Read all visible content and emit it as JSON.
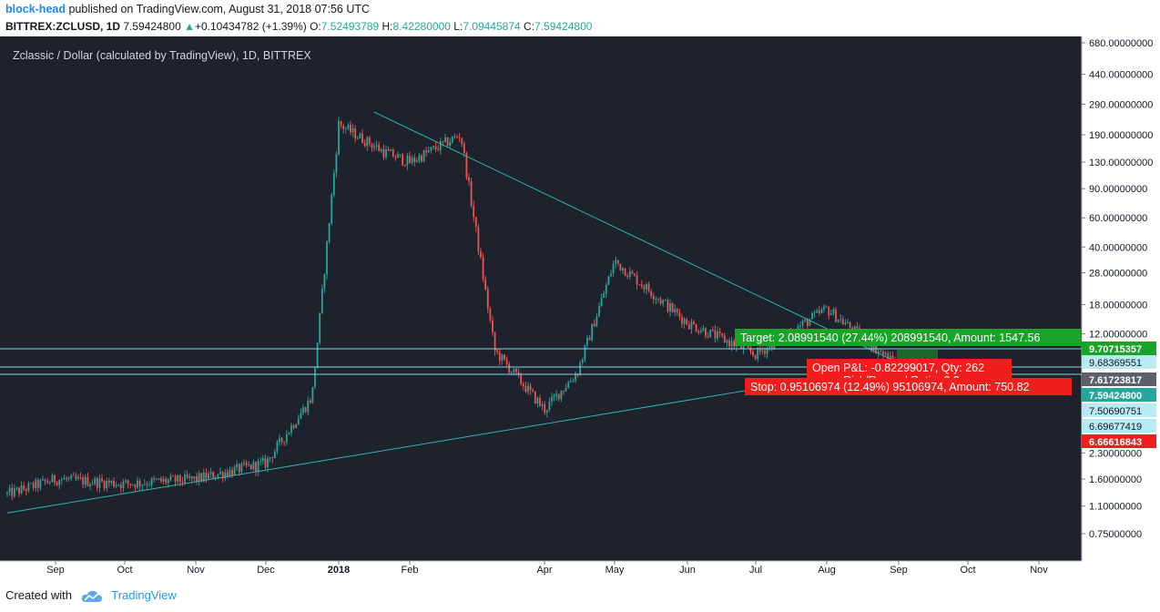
{
  "header": {
    "user": "block-head",
    "published": "published on TradingView.com, August 31, 2018 07:56 UTC",
    "symbol": "BITTREX:ZCLUSD, 1D",
    "last": "7.59424800",
    "change": "+0.10434782 (+1.39%)",
    "o_label": "O:",
    "open": "7.52493789",
    "h_label": "H:",
    "high": "8.42280000",
    "l_label": "L:",
    "low": "7.09445874",
    "c_label": "C:",
    "close": "7.59424800"
  },
  "chart": {
    "legend": "Zclassic / Dollar (calculated by TradingView), 1D, BITTREX",
    "target_label": "Target: 2.08991540 (27.44%) 208991540, Amount: 1547.56",
    "openpl_label": "Open P&L: -0.82299017, Qty: 262",
    "rr_label": "Risk/Reward Ratio: 2.2",
    "stop_label": "Stop: 0.95106974 (12.49%) 95106974, Amount: 750.82"
  },
  "footer": {
    "created": "Created with",
    "brand": "TradingView"
  },
  "colors": {
    "background": "#1e222d",
    "up": "#26a69a",
    "down": "#ef5350",
    "trendline": "#2bb8a8",
    "hline": "#7fd8e8",
    "target": "#1aa329",
    "stop": "#f21d1d"
  },
  "chart_data": {
    "type": "candlestick",
    "title": "Zclassic / Dollar (calculated by TradingView), 1D, BITTREX",
    "y_scale": "log",
    "y_ticks": [
      "680.00000000",
      "440.00000000",
      "290.00000000",
      "190.00000000",
      "130.00000000",
      "90.00000000",
      "60.00000000",
      "40.00000000",
      "28.00000000",
      "18.00000000",
      "12.00000000",
      "2.30000000",
      "1.60000000",
      "1.10000000",
      "0.75000000"
    ],
    "x_ticks": [
      "Sep",
      "Oct",
      "Nov",
      "Dec",
      "2018",
      "Feb",
      "Apr",
      "May",
      "Jun",
      "Jul",
      "Aug",
      "Sep",
      "Oct",
      "Nov"
    ],
    "price_labels": [
      {
        "text": "9.70715357",
        "style": "target"
      },
      {
        "text": "9.68369551",
        "style": "line"
      },
      {
        "text": "7.61723817",
        "style": "dark"
      },
      {
        "text": "7.59424800",
        "style": "last"
      },
      {
        "text": "7.50690751",
        "style": "line"
      },
      {
        "text": "6.69677419",
        "style": "line"
      },
      {
        "text": "6.66616843",
        "style": "stop"
      }
    ],
    "trendlines": [
      {
        "name": "resistance",
        "from": [
          "Jan 16 2018",
          260
        ],
        "to": [
          "Sep 2018",
          8.0
        ]
      },
      {
        "name": "support",
        "from": [
          "Aug 2017",
          1.0
        ],
        "to": [
          "Aug 20 2018",
          7.3
        ]
      }
    ],
    "series": [
      {
        "date": "Aug 2017",
        "close": 1.3
      },
      {
        "date": "Sep 2017",
        "close": 1.6
      },
      {
        "date": "Oct 2017",
        "close": 1.5
      },
      {
        "date": "Nov 2017",
        "close": 1.6
      },
      {
        "date": "Dec 2017",
        "close": 2.0
      },
      {
        "date": "Dec 20 2017",
        "close": 5.0
      },
      {
        "date": "Jan 2018",
        "close": 220
      },
      {
        "date": "Jan 20 2018",
        "close": 150
      },
      {
        "date": "Feb 2018",
        "close": 130
      },
      {
        "date": "Feb 25 2018",
        "close": 190
      },
      {
        "date": "Mar 10 2018",
        "close": 9.5
      },
      {
        "date": "Apr 2018",
        "close": 4.2
      },
      {
        "date": "Apr 15 2018",
        "close": 7.0
      },
      {
        "date": "May 2018",
        "close": 33
      },
      {
        "date": "Jun 2018",
        "close": 14
      },
      {
        "date": "Jul 2018",
        "close": 9.0
      },
      {
        "date": "Aug 2018",
        "close": 17
      },
      {
        "date": "Aug 31 2018",
        "close": 7.59
      }
    ]
  }
}
